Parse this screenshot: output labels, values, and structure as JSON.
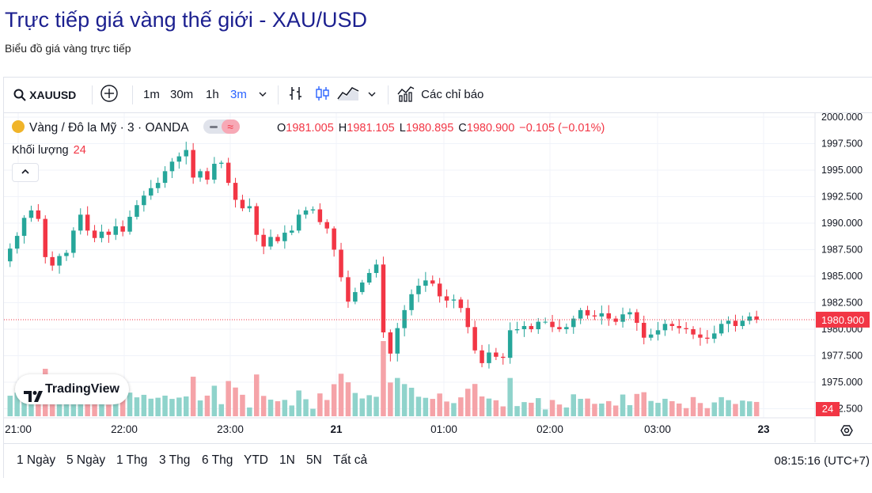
{
  "page": {
    "title": "Trực tiếp giá vàng thế giới - XAU/USD",
    "subtitle": "Biểu đồ giá vàng trực tiếp"
  },
  "toolbar": {
    "symbol": "XAUUSD",
    "intervals": [
      "1m",
      "30m",
      "1h",
      "3m"
    ],
    "active_interval": "3m",
    "indicators_label": "Các chỉ báo"
  },
  "legend": {
    "instrument": "Vàng / Đô la Mỹ · 3 · OANDA",
    "pill_icon": "≈",
    "open_key": "O",
    "open": "1981.005",
    "high_key": "H",
    "high": "1981.105",
    "low_key": "L",
    "low": "1980.895",
    "close_key": "C",
    "close": "1980.900",
    "change": "−0.105 (−0.01%)",
    "volume_label": "Khối lượng",
    "volume_value": "24"
  },
  "logo": {
    "text": "TradingView"
  },
  "range_bar": {
    "ranges": [
      "1 Ngày",
      "5 Ngày",
      "1 Thg",
      "3 Thg",
      "6 Thg",
      "YTD",
      "1N",
      "5N",
      "Tất cả"
    ],
    "clock": "08:15:16 (UTC+7)"
  },
  "colors": {
    "up": "#26a69a",
    "down": "#f23645",
    "vol_up": "#8fd3cb",
    "vol_down": "#f5a3a8",
    "title": "#1b1f8f",
    "accent": "#2962ff"
  },
  "chart_data": {
    "type": "candlestick",
    "symbol": "XAU/USD",
    "interval": "3m",
    "time_labels": [
      "21:00",
      "22:00",
      "23:00",
      "21",
      "01:00",
      "02:00",
      "03:00",
      "23"
    ],
    "price_ticks": [
      "2000.000",
      "1997.500",
      "1995.000",
      "1992.500",
      "1990.000",
      "1987.500",
      "1985.000",
      "1982.500",
      "1980.000",
      "1977.500",
      "1975.000",
      "1972.500"
    ],
    "ylim": [
      1972.5,
      2000.0
    ],
    "last_price": "1980.900",
    "last_volume": "24",
    "close": [
      1987.6,
      1988.8,
      1990.5,
      1991.2,
      1990.4,
      1986.8,
      1986.0,
      1986.9,
      1987.2,
      1989.3,
      1990.8,
      1989.3,
      1988.6,
      1989.2,
      1988.9,
      1989.7,
      1989.2,
      1990.6,
      1991.7,
      1992.6,
      1993.3,
      1993.8,
      1994.9,
      1995.8,
      1996.3,
      1996.9,
      1994.3,
      1994.9,
      1994.1,
      1995.6,
      1995.7,
      1993.8,
      1992.2,
      1991.4,
      1991.6,
      1988.9,
      1987.8,
      1988.7,
      1988.3,
      1989.1,
      1989.3,
      1990.8,
      1991.2,
      1991.3,
      1990.1,
      1989.5,
      1987.5,
      1984.9,
      1982.6,
      1983.5,
      1984.4,
      1985.3,
      1986.1,
      1979.7,
      1977.7,
      1980.1,
      1981.8,
      1983.3,
      1984.1,
      1984.6,
      1984.3,
      1983.1,
      1982.7,
      1982.8,
      1982.0,
      1980.2,
      1978.0,
      1976.8,
      1977.8,
      1977.4,
      1977.3,
      1979.9,
      1980.0,
      1980.3,
      1980.0,
      1980.7,
      1980.7,
      1980.2,
      1980.0,
      1980.2,
      1981.0,
      1981.8,
      1981.3,
      1981.2,
      1981.5,
      1981.0,
      1980.7,
      1981.4,
      1981.6,
      1980.6,
      1979.2,
      1979.5,
      1979.9,
      1980.5,
      1980.3,
      1980.1,
      1980.0,
      1979.5,
      1979.2,
      1979.1,
      1979.6,
      1980.5,
      1980.8,
      1980.3,
      1980.8,
      1981.2,
      1980.9
    ]
  }
}
